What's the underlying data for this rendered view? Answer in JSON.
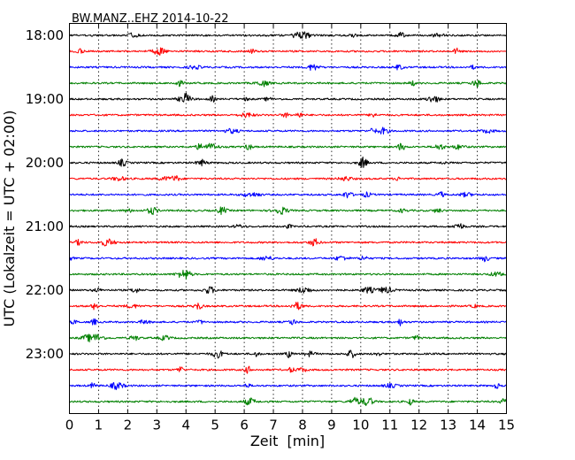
{
  "chart_data": {
    "type": "line",
    "title": "BW.MANZ..EHZ 2014-10-22",
    "xlabel": "Zeit  [min]",
    "ylabel": "UTC (Lokalzeit = UTC + 02:00)",
    "xlim": [
      0,
      15
    ],
    "x_ticks": [
      "0",
      "1",
      "2",
      "3",
      "4",
      "5",
      "6",
      "7",
      "8",
      "9",
      "10",
      "11",
      "12",
      "13",
      "14",
      "15"
    ],
    "y_tick_labels": [
      "18:00",
      "19:00",
      "20:00",
      "21:00",
      "22:00",
      "23:00"
    ],
    "grid": "vertical dotted",
    "trace_colors": [
      "#000000",
      "#ff0000",
      "#0000ff",
      "#008000"
    ],
    "traces": [
      {
        "start": "18:00",
        "color": "#000000"
      },
      {
        "start": "18:15",
        "color": "#ff0000"
      },
      {
        "start": "18:30",
        "color": "#0000ff"
      },
      {
        "start": "18:45",
        "color": "#008000"
      },
      {
        "start": "19:00",
        "color": "#000000"
      },
      {
        "start": "19:15",
        "color": "#ff0000"
      },
      {
        "start": "19:30",
        "color": "#0000ff"
      },
      {
        "start": "19:45",
        "color": "#008000"
      },
      {
        "start": "20:00",
        "color": "#000000"
      },
      {
        "start": "20:15",
        "color": "#ff0000"
      },
      {
        "start": "20:30",
        "color": "#0000ff"
      },
      {
        "start": "20:45",
        "color": "#008000"
      },
      {
        "start": "21:00",
        "color": "#000000"
      },
      {
        "start": "21:15",
        "color": "#ff0000"
      },
      {
        "start": "21:30",
        "color": "#0000ff"
      },
      {
        "start": "21:45",
        "color": "#008000"
      },
      {
        "start": "22:00",
        "color": "#000000"
      },
      {
        "start": "22:15",
        "color": "#ff0000"
      },
      {
        "start": "22:30",
        "color": "#0000ff"
      },
      {
        "start": "22:45",
        "color": "#008000"
      },
      {
        "start": "23:00",
        "color": "#000000"
      },
      {
        "start": "23:15",
        "color": "#ff0000"
      },
      {
        "start": "23:30",
        "color": "#0000ff"
      },
      {
        "start": "23:45",
        "color": "#008000"
      }
    ]
  }
}
